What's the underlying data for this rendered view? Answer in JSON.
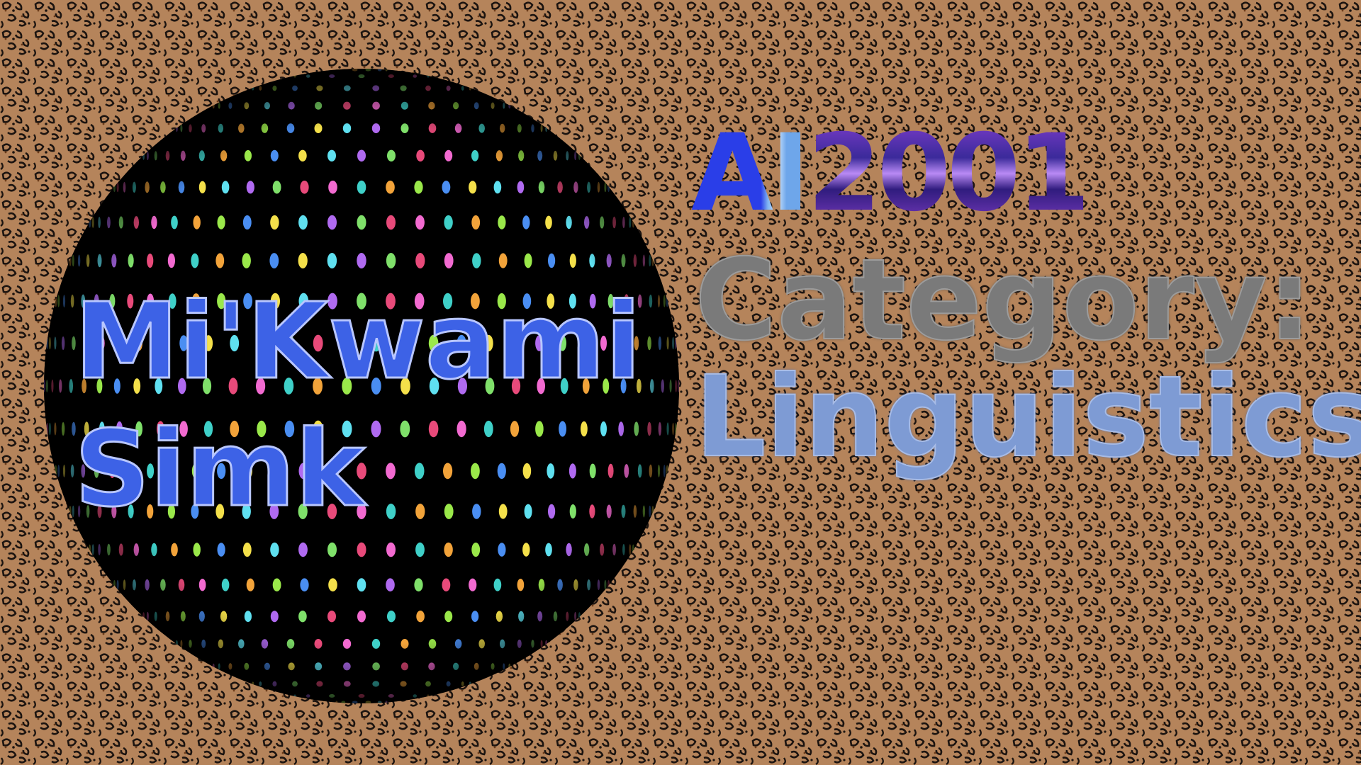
{
  "title_card": {
    "name_line_1": "Mi'Kwami",
    "name_line_2": "Simk",
    "ai_prefix": "AI",
    "year": "2001",
    "category_label": "Category:",
    "category_value": "Linguistics"
  },
  "colors": {
    "background_base": "#b5845b",
    "leopard_spot": "#1c1410",
    "sphere_base": "#000000",
    "name_text": "#3d62e6",
    "category_text": "#7a7a7a",
    "subject_text": "#7e9bd4"
  }
}
